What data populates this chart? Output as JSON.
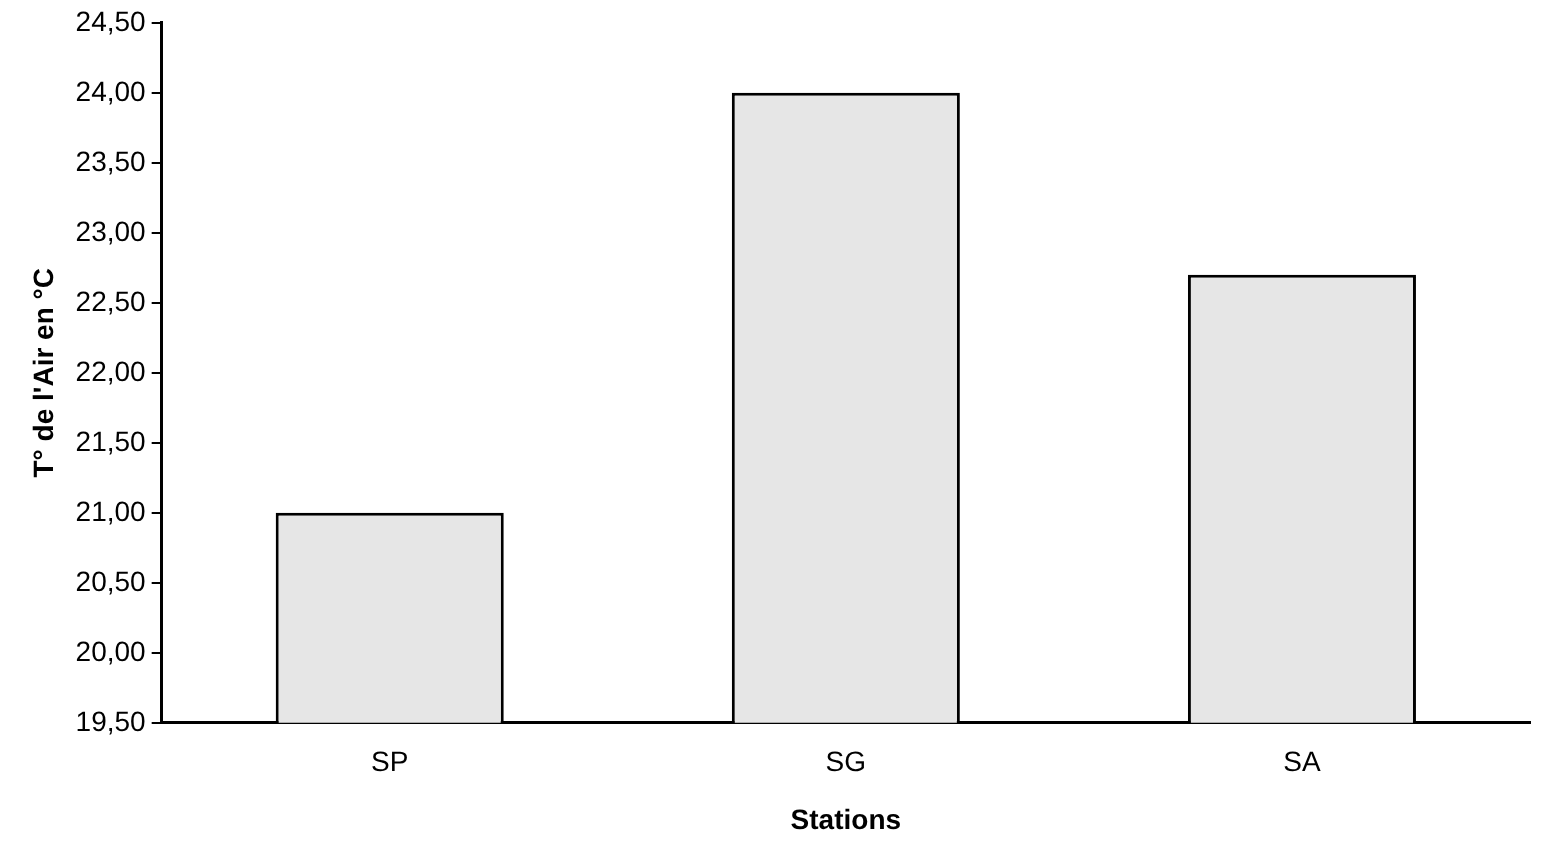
{
  "chart_data": {
    "type": "bar",
    "categories": [
      "SP",
      "SG",
      "SA"
    ],
    "values": [
      21.0,
      24.0,
      22.7
    ],
    "color": "#e6e6e6",
    "xlabel": "Stations",
    "ylabel": "T° de l'Air en °C",
    "ylim": [
      19.5,
      24.5
    ],
    "yticks": [
      {
        "value": 19.5,
        "label": "19,50"
      },
      {
        "value": 20,
        "label": "20,00"
      },
      {
        "value": 20.5,
        "label": "20,50"
      },
      {
        "value": 21,
        "label": "21,00"
      },
      {
        "value": 21.5,
        "label": "21,50"
      },
      {
        "value": 22,
        "label": "22,00"
      },
      {
        "value": 22.5,
        "label": "22,50"
      },
      {
        "value": 23,
        "label": "23,00"
      },
      {
        "value": 23.5,
        "label": "23,50"
      },
      {
        "value": 24,
        "label": "24,00"
      },
      {
        "value": 24.5,
        "label": "24,50"
      }
    ],
    "grid": false,
    "legend": false
  }
}
